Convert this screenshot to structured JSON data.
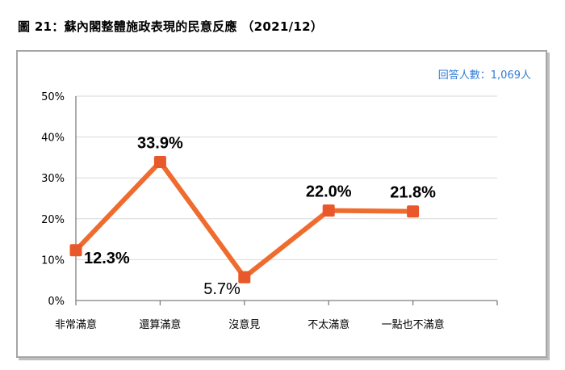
{
  "figure": {
    "title": "圖 21：蘇內閣整體施政表現的民意反應 （2021/12）",
    "respondents_note": "回答人數：1,069人"
  },
  "chart_data": {
    "type": "line",
    "categories": [
      "非常滿意",
      "還算滿意",
      "沒意見",
      "不太滿意",
      "一點也不滿意"
    ],
    "values": [
      12.3,
      33.9,
      5.7,
      22.0,
      21.8
    ],
    "value_labels": [
      "12.3%",
      "33.9%",
      "5.7%",
      "22.0%",
      "21.8%"
    ],
    "ylim": [
      0,
      50
    ],
    "yticks": [
      0,
      10,
      20,
      30,
      40,
      50
    ],
    "ytick_labels": [
      "0%",
      "10%",
      "20%",
      "30%",
      "40%",
      "50%"
    ],
    "grid": true,
    "colors": {
      "line": "#ef6c2f",
      "marker": "#e9582a",
      "grid": "#d9d9d9",
      "axis": "#7f7f7f"
    }
  }
}
